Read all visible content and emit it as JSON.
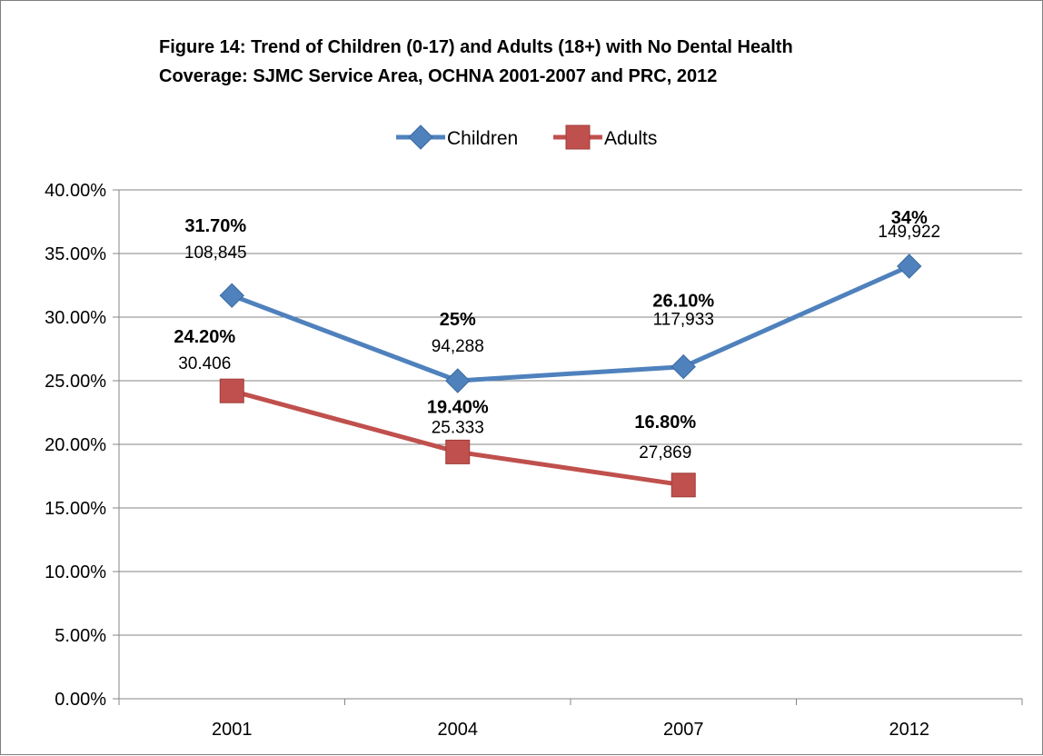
{
  "chart_data": {
    "type": "line",
    "title_lines": [
      "Figure 14: Trend of Children (0-17) and Adults (18+) with No Dental Health",
      "Coverage: SJMC Service Area, OCHNA 2001-2007 and PRC, 2012"
    ],
    "categories": [
      "2001",
      "2004",
      "2007",
      "2012"
    ],
    "ylim": [
      0,
      40
    ],
    "y_ticks": [
      "0.00%",
      "5.00%",
      "10.00%",
      "15.00%",
      "20.00%",
      "25.00%",
      "30.00%",
      "35.00%",
      "40.00%"
    ],
    "grid": true,
    "legend_position": "top",
    "series": [
      {
        "name": "Children",
        "color": "#4f81bd",
        "marker": "diamond",
        "values": [
          31.7,
          25,
          26.1,
          34
        ],
        "pct_labels": [
          "31.70%",
          "25%",
          "26.10%",
          "34%"
        ],
        "count_labels": [
          "108,845",
          "94,288",
          "117,933",
          "149,922"
        ]
      },
      {
        "name": "Adults",
        "color": "#c0504d",
        "marker": "square",
        "values": [
          24.2,
          19.4,
          16.8,
          null
        ],
        "pct_labels": [
          "24.20%",
          "19.40%",
          "16.80%",
          ""
        ],
        "count_labels": [
          "30.406",
          "25.333",
          "27,869",
          ""
        ]
      }
    ]
  }
}
